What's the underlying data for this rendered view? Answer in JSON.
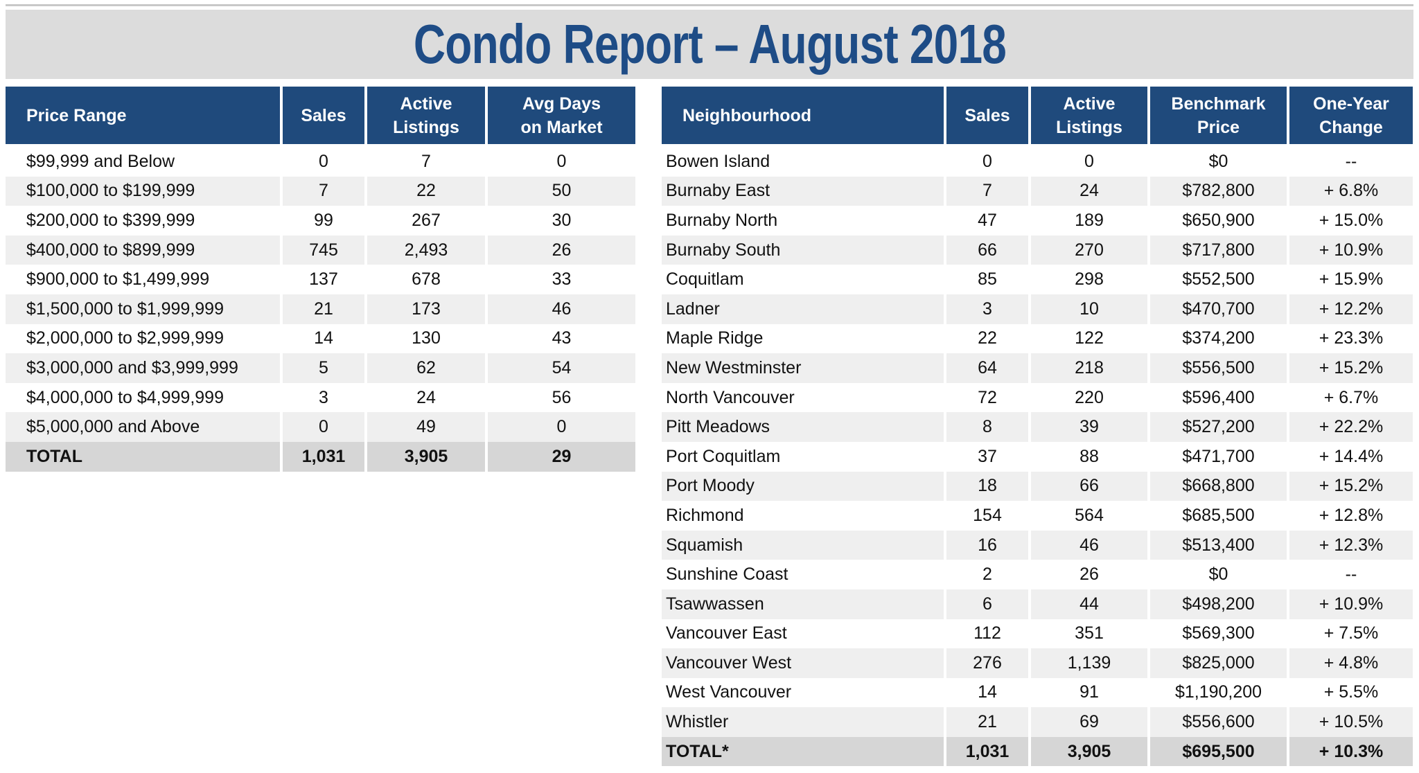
{
  "title": "Condo Report – August 2018",
  "colors": {
    "title": "#1e4c86",
    "header_bg": "#1f4a7c",
    "title_bar_bg": "#dcdcdc",
    "row_alt": "#efefef",
    "total_bg": "#d6d6d6"
  },
  "price_table": {
    "headers": {
      "range": "Price Range",
      "sales": "Sales",
      "active_1": "Active",
      "active_2": "Listings",
      "days_1": "Avg Days",
      "days_2": "on Market"
    },
    "rows": [
      {
        "range": "$99,999 and Below",
        "sales": "0",
        "active": "7",
        "days": "0"
      },
      {
        "range": "$100,000 to $199,999",
        "sales": "7",
        "active": "22",
        "days": "50"
      },
      {
        "range": "$200,000 to $399,999",
        "sales": "99",
        "active": "267",
        "days": "30"
      },
      {
        "range": "$400,000 to $899,999",
        "sales": "745",
        "active": "2,493",
        "days": "26"
      },
      {
        "range": "$900,000 to $1,499,999",
        "sales": "137",
        "active": "678",
        "days": "33"
      },
      {
        "range": "$1,500,000 to $1,999,999",
        "sales": "21",
        "active": "173",
        "days": "46"
      },
      {
        "range": "$2,000,000 to $2,999,999",
        "sales": "14",
        "active": "130",
        "days": "43"
      },
      {
        "range": "$3,000,000 and $3,999,999",
        "sales": "5",
        "active": "62",
        "days": "54"
      },
      {
        "range": "$4,000,000 to $4,999,999",
        "sales": "3",
        "active": "24",
        "days": "56"
      },
      {
        "range": "$5,000,000 and Above",
        "sales": "0",
        "active": "49",
        "days": "0"
      }
    ],
    "total": {
      "range": "TOTAL",
      "sales": "1,031",
      "active": "3,905",
      "days": "29"
    }
  },
  "neighbourhood_table": {
    "headers": {
      "name": "Neighbourhood",
      "sales": "Sales",
      "active_1": "Active",
      "active_2": "Listings",
      "bench_1": "Benchmark",
      "bench_2": "Price",
      "change_1": "One-Year",
      "change_2": "Change"
    },
    "rows": [
      {
        "name": "Bowen Island",
        "sales": "0",
        "active": "0",
        "price": "$0",
        "change": "--"
      },
      {
        "name": "Burnaby East",
        "sales": "7",
        "active": "24",
        "price": "$782,800",
        "change": "+ 6.8%"
      },
      {
        "name": "Burnaby North",
        "sales": "47",
        "active": "189",
        "price": "$650,900",
        "change": "+ 15.0%"
      },
      {
        "name": "Burnaby South",
        "sales": "66",
        "active": "270",
        "price": "$717,800",
        "change": "+ 10.9%"
      },
      {
        "name": "Coquitlam",
        "sales": "85",
        "active": "298",
        "price": "$552,500",
        "change": "+ 15.9%"
      },
      {
        "name": "Ladner",
        "sales": "3",
        "active": "10",
        "price": "$470,700",
        "change": "+ 12.2%"
      },
      {
        "name": "Maple Ridge",
        "sales": "22",
        "active": "122",
        "price": "$374,200",
        "change": "+ 23.3%"
      },
      {
        "name": "New Westminster",
        "sales": "64",
        "active": "218",
        "price": "$556,500",
        "change": "+ 15.2%"
      },
      {
        "name": "North Vancouver",
        "sales": "72",
        "active": "220",
        "price": "$596,400",
        "change": "+ 6.7%"
      },
      {
        "name": "Pitt Meadows",
        "sales": "8",
        "active": "39",
        "price": "$527,200",
        "change": "+ 22.2%"
      },
      {
        "name": "Port Coquitlam",
        "sales": "37",
        "active": "88",
        "price": "$471,700",
        "change": "+ 14.4%"
      },
      {
        "name": "Port Moody",
        "sales": "18",
        "active": "66",
        "price": "$668,800",
        "change": "+ 15.2%"
      },
      {
        "name": "Richmond",
        "sales": "154",
        "active": "564",
        "price": "$685,500",
        "change": "+ 12.8%"
      },
      {
        "name": "Squamish",
        "sales": "16",
        "active": "46",
        "price": "$513,400",
        "change": "+ 12.3%"
      },
      {
        "name": "Sunshine Coast",
        "sales": "2",
        "active": "26",
        "price": "$0",
        "change": "--"
      },
      {
        "name": "Tsawwassen",
        "sales": "6",
        "active": "44",
        "price": "$498,200",
        "change": "+ 10.9%"
      },
      {
        "name": "Vancouver East",
        "sales": "112",
        "active": "351",
        "price": "$569,300",
        "change": "+ 7.5%"
      },
      {
        "name": "Vancouver West",
        "sales": "276",
        "active": "1,139",
        "price": "$825,000",
        "change": "+ 4.8%"
      },
      {
        "name": "West Vancouver",
        "sales": "14",
        "active": "91",
        "price": "$1,190,200",
        "change": "+ 5.5%"
      },
      {
        "name": "Whistler",
        "sales": "21",
        "active": "69",
        "price": "$556,600",
        "change": "+ 10.5%"
      }
    ],
    "total": {
      "name": "TOTAL*",
      "sales": "1,031",
      "active": "3,905",
      "price": "$695,500",
      "change": "+ 10.3%"
    }
  }
}
